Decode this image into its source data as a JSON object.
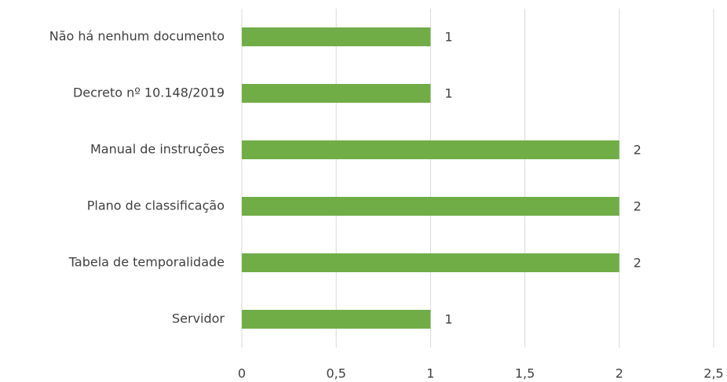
{
  "chart_data": {
    "type": "bar",
    "orientation": "horizontal",
    "categories": [
      "Não há nenhum documento",
      "Decreto nº 10.148/2019",
      "Manual de instruções",
      "Plano de classificação",
      "Tabela de temporalidade",
      "Servidor"
    ],
    "values": [
      1,
      1,
      2,
      2,
      2,
      1
    ],
    "color": "#70ad47",
    "xlim": [
      0,
      2.5
    ],
    "xticks": [
      0,
      {
        "value": 0.5,
        "label": "0,5"
      },
      1,
      {
        "value": 1.5,
        "label": "1,5"
      },
      2,
      {
        "value": 2.5,
        "label": "2,5"
      }
    ],
    "grid": true,
    "data_labels": true
  }
}
